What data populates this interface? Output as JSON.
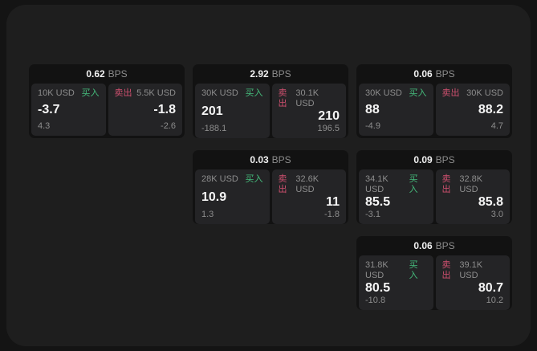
{
  "labels": {
    "bps": "BPS",
    "buy": "买入",
    "sell": "卖出"
  },
  "colors": {
    "page_bg": "#141414",
    "surface_bg": "#1e1e1e",
    "card_bg": "#121212",
    "panel_bg": "#242426",
    "buy_green": "#45bd7c",
    "sell_red": "#cf506f",
    "value_white": "#f5f5f5",
    "muted_gray": "#8d8d8d"
  },
  "cards": [
    {
      "bps": "0.62",
      "buy": {
        "amount": "10K USD",
        "value": "-3.7",
        "delta": "4.3"
      },
      "sell": {
        "amount": "5.5K USD",
        "value": "-1.8",
        "delta": "-2.6"
      }
    },
    {
      "bps": "2.92",
      "buy": {
        "amount": "30K USD",
        "value": "201",
        "delta": "-188.1"
      },
      "sell": {
        "amount": "30.1K USD",
        "value": "210",
        "delta": "196.5"
      }
    },
    {
      "bps": "0.06",
      "buy": {
        "amount": "30K USD",
        "value": "88",
        "delta": "-4.9"
      },
      "sell": {
        "amount": "30K USD",
        "value": "88.2",
        "delta": "4.7"
      }
    },
    {
      "bps": "0.03",
      "buy": {
        "amount": "28K USD",
        "value": "10.9",
        "delta": "1.3"
      },
      "sell": {
        "amount": "32.6K USD",
        "value": "11",
        "delta": "-1.8"
      }
    },
    {
      "bps": "0.09",
      "buy": {
        "amount": "34.1K USD",
        "value": "85.5",
        "delta": "-3.1"
      },
      "sell": {
        "amount": "32.8K USD",
        "value": "85.8",
        "delta": "3.0"
      }
    },
    {
      "bps": "0.06",
      "buy": {
        "amount": "31.8K USD",
        "value": "80.5",
        "delta": "-10.8"
      },
      "sell": {
        "amount": "39.1K USD",
        "value": "80.7",
        "delta": "10.2"
      }
    }
  ]
}
